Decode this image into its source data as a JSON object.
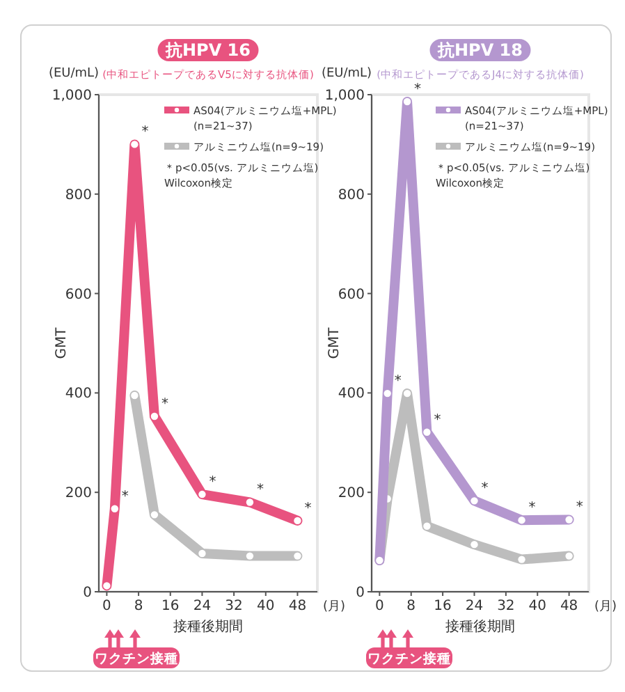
{
  "chart_data": [
    {
      "type": "line",
      "title": "抗HPV 16",
      "subtitle": "(中和エピトープであるV5に対する抗体価)",
      "ylabel": "GMT",
      "xlabel": "接種後期間",
      "x": [
        0,
        2,
        7,
        12,
        24,
        36,
        48
      ],
      "xlim": [
        -2,
        53
      ],
      "xticks": [
        0,
        8,
        16,
        24,
        32,
        40,
        48
      ],
      "ylim": [
        0,
        1000
      ],
      "yticks": [
        0,
        200,
        400,
        600,
        800,
        {
          "value": 1000,
          "label": "1,000"
        }
      ],
      "marker": "circle",
      "legend": "top right",
      "series": [
        {
          "name": "AS04(アルミニウム塩+MPL) (n=21~37)",
          "color": "#e8537f",
          "values": [
            12,
            167,
            900,
            353,
            196,
            180,
            143
          ]
        },
        {
          "name": "アルミニウム塩(n=9~19)",
          "color": "#bdbdbd",
          "values": [
            null,
            null,
            395,
            155,
            77,
            72,
            72
          ]
        }
      ],
      "annotations": [
        "(EU/mL)",
        "(月)",
        "＊p<0.05(vs. アルミニウム塩)",
        "Wilcoxon検定",
        "ワクチン接種",
        {
          "text": "*",
          "x": 2,
          "y": 167
        },
        {
          "text": "*",
          "x": 7,
          "y": 900
        },
        {
          "text": "*",
          "x": 12,
          "y": 353
        },
        {
          "text": "*",
          "x": 24,
          "y": 196
        },
        {
          "text": "*",
          "x": 36,
          "y": 180
        },
        {
          "text": "*",
          "x": 48,
          "y": 143
        }
      ]
    },
    {
      "type": "line",
      "title": "抗HPV 18",
      "subtitle": "(中和エピトープであるJ4に対する抗体価)",
      "ylabel": "GMT",
      "xlabel": "接種後期間",
      "x": [
        0,
        2,
        7,
        12,
        24,
        36,
        48
      ],
      "xlim": [
        -2,
        53
      ],
      "xticks": [
        0,
        8,
        16,
        24,
        32,
        40,
        48
      ],
      "ylim": [
        0,
        1000
      ],
      "yticks": [
        0,
        200,
        400,
        600,
        800,
        {
          "value": 1000,
          "label": "1,000"
        }
      ],
      "marker": "circle",
      "legend": "top right",
      "series": [
        {
          "name": "AS04(アルミニウム塩+MPL) (n=21~37)",
          "color": "#b497cf",
          "values": [
            63,
            399,
            986,
            321,
            183,
            144,
            145
          ]
        },
        {
          "name": "アルミニウム塩(n=9~19)",
          "color": "#bdbdbd",
          "values": [
            63,
            187,
            399,
            132,
            95,
            65,
            72
          ]
        }
      ],
      "annotations": [
        "(EU/mL)",
        "(月)",
        "＊p<0.05(vs. アルミニウム塩)",
        "Wilcoxon検定",
        "ワクチン接種",
        {
          "text": "*",
          "x": 2,
          "y": 399
        },
        {
          "text": "*",
          "x": 7,
          "y": 986
        },
        {
          "text": "*",
          "x": 12,
          "y": 321
        },
        {
          "text": "*",
          "x": 24,
          "y": 183
        },
        {
          "text": "*",
          "x": 36,
          "y": 144
        },
        {
          "text": "*",
          "x": 48,
          "y": 145
        }
      ]
    }
  ]
}
